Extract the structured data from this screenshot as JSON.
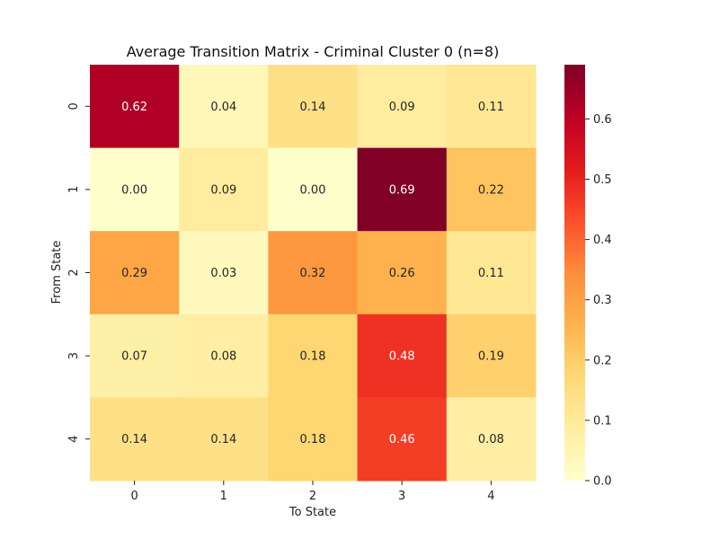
{
  "chart_data": {
    "type": "heatmap",
    "title": "Average Transition Matrix - Criminal Cluster 0 (n=8)",
    "xlabel": "To State",
    "ylabel": "From State",
    "x_categories": [
      "0",
      "1",
      "2",
      "3",
      "4"
    ],
    "y_categories": [
      "0",
      "1",
      "2",
      "3",
      "4"
    ],
    "values": [
      [
        0.62,
        0.04,
        0.14,
        0.09,
        0.11
      ],
      [
        0.0,
        0.09,
        0.0,
        0.69,
        0.22
      ],
      [
        0.29,
        0.03,
        0.32,
        0.26,
        0.11
      ],
      [
        0.07,
        0.08,
        0.18,
        0.48,
        0.19
      ],
      [
        0.14,
        0.14,
        0.18,
        0.46,
        0.08
      ]
    ],
    "colorbar": {
      "min": 0.0,
      "max": 0.69,
      "ticks": [
        0.0,
        0.1,
        0.2,
        0.3,
        0.4,
        0.5,
        0.6
      ],
      "colormap": "YlOrRd"
    },
    "annotations": true,
    "grid": false
  }
}
